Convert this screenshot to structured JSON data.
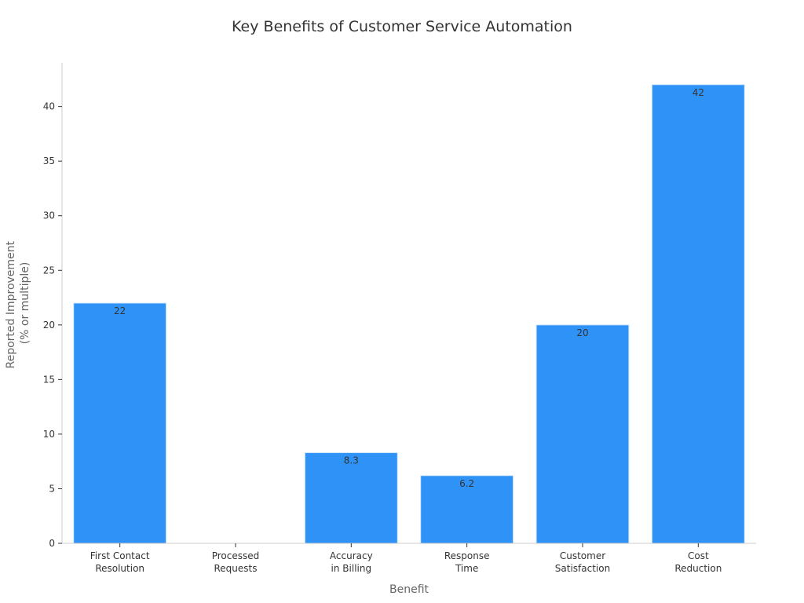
{
  "chart_data": {
    "type": "bar",
    "title": "Key Benefits of Customer Service Automation",
    "xlabel": "Benefit",
    "ylabel_lines": [
      "Reported Improvement",
      "(% or multiple)"
    ],
    "categories": [
      [
        "First Contact",
        "Resolution"
      ],
      [
        "Processed",
        "Requests"
      ],
      [
        "Accuracy",
        "in Billing"
      ],
      [
        "Response",
        "Time"
      ],
      [
        "Customer",
        "Satisfaction"
      ],
      [
        "Cost",
        "Reduction"
      ]
    ],
    "values": [
      22,
      null,
      8.3,
      6.2,
      20,
      42
    ],
    "value_labels": [
      "22",
      "",
      "8.3",
      "6.2",
      "20",
      "42"
    ],
    "ylim": [
      0,
      44
    ],
    "yticks": [
      0,
      5,
      10,
      15,
      20,
      25,
      30,
      35,
      40
    ],
    "grid": false,
    "bar_color": "#2F92F7",
    "bar_edge_color": "#CFE6FB",
    "axis_color": "#CCCCCC"
  }
}
